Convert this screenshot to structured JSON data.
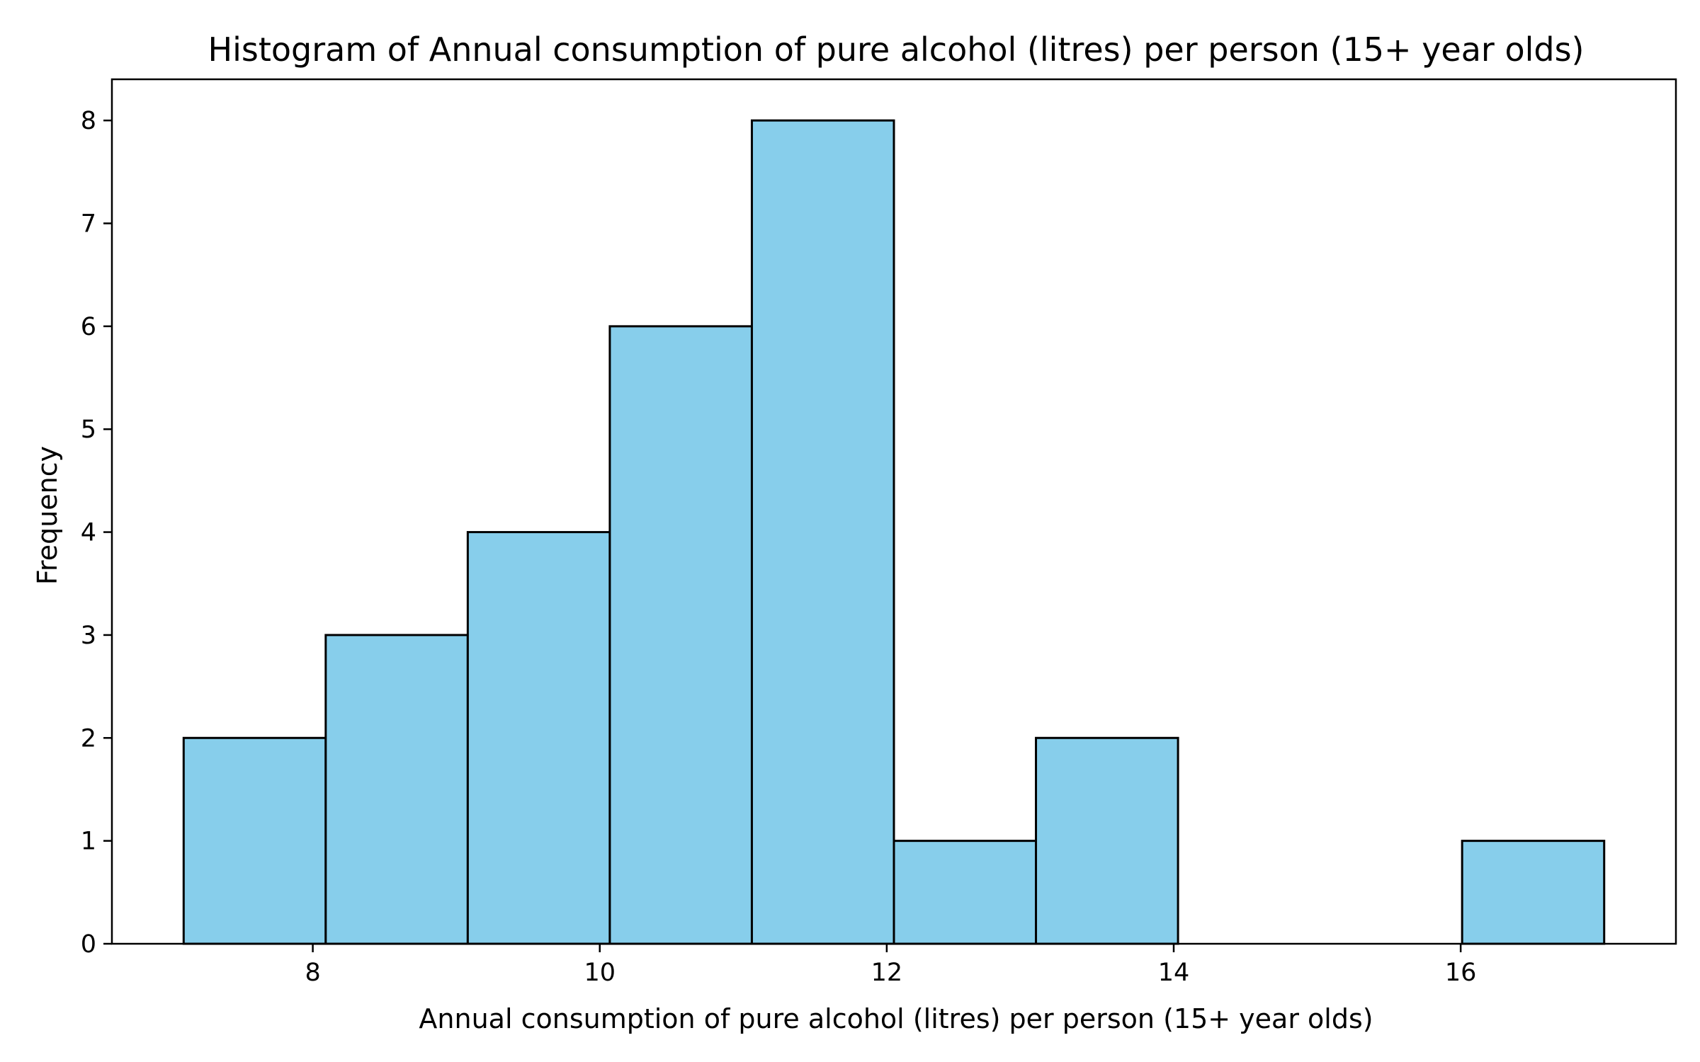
{
  "chart_data": {
    "type": "bar",
    "subtype": "histogram",
    "title": "Histogram of Annual consumption of pure alcohol (litres) per person (15+ year olds)",
    "xlabel": "Annual consumption of pure alcohol (litres) per person (15+ year olds)",
    "ylabel": "Frequency",
    "bin_edges": [
      7.1,
      8.09,
      9.08,
      10.07,
      11.06,
      12.05,
      13.04,
      14.03,
      15.02,
      16.01,
      17.0
    ],
    "values": [
      2,
      3,
      4,
      6,
      8,
      1,
      2,
      0,
      0,
      1
    ],
    "xlim": [
      6.6,
      17.5
    ],
    "ylim": [
      0,
      8.4
    ],
    "xticks": [
      8,
      10,
      12,
      14,
      16
    ],
    "yticks": [
      0,
      1,
      2,
      3,
      4,
      5,
      6,
      7,
      8
    ],
    "grid": false,
    "legend": false,
    "colors": {
      "bar_fill": "#87ceeb",
      "bar_edge": "#000000",
      "axis": "#000000"
    }
  }
}
